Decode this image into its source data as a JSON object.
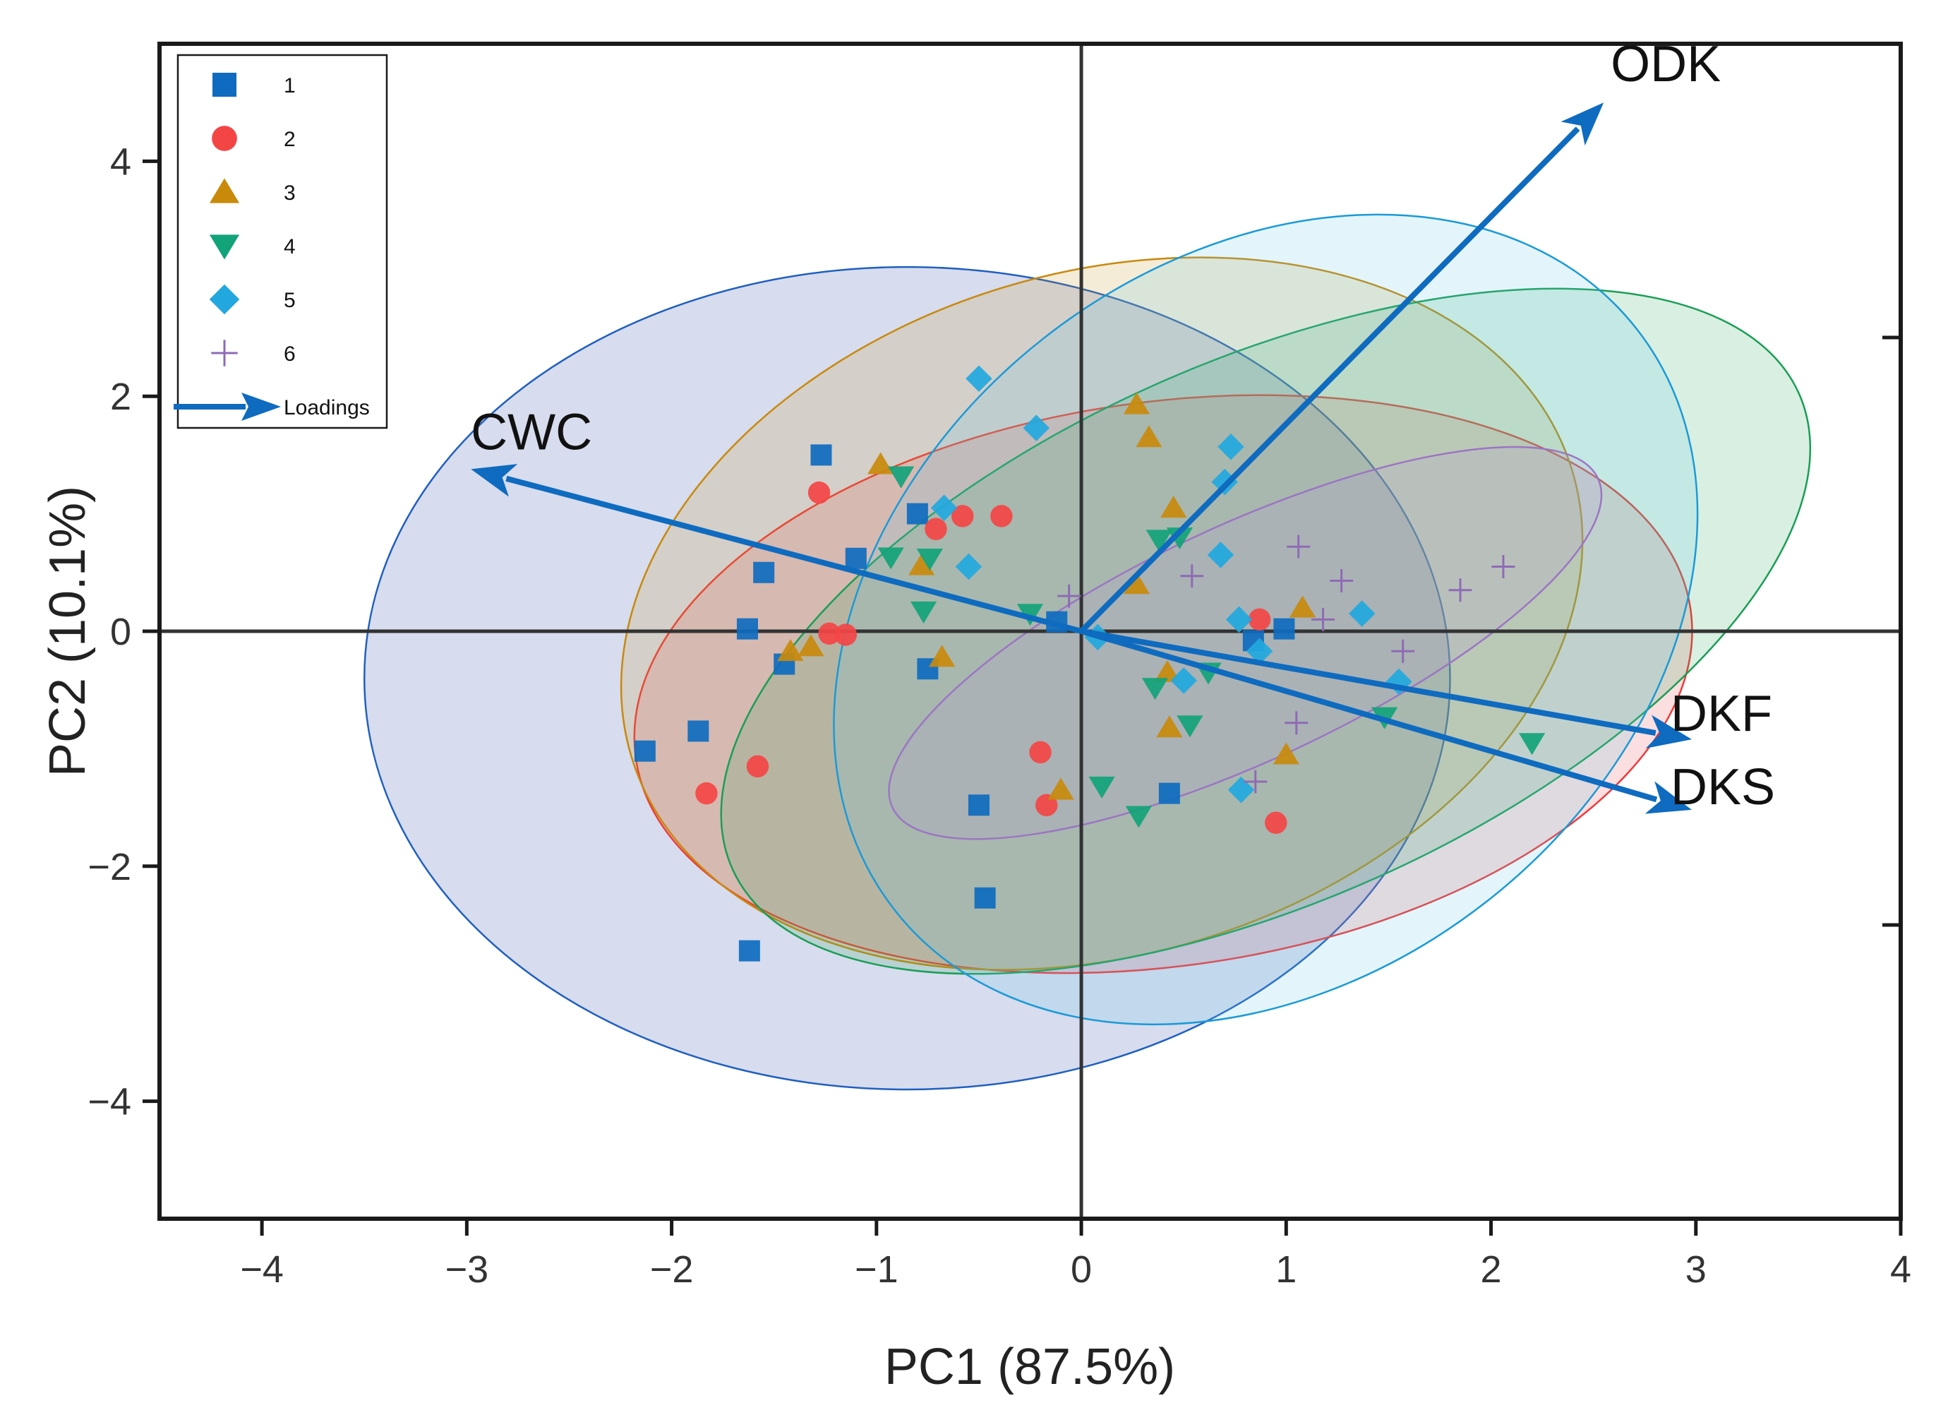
{
  "chart_data": {
    "type": "scatter",
    "subtype": "pca-biplot",
    "title": "",
    "xlabel": "PC1 (87.5%)",
    "ylabel": "PC2 (10.1%)",
    "xlim": [
      -4.5,
      4
    ],
    "ylim": [
      -5,
      5
    ],
    "xticks": [
      -4,
      -3,
      -2,
      -1,
      0,
      1,
      2,
      3,
      4
    ],
    "yticks": [
      -4,
      -2,
      0,
      2,
      4
    ],
    "xtick_labels": [
      "−4",
      "−3",
      "−2",
      "−1",
      "0",
      "1",
      "2",
      "3",
      "4"
    ],
    "ytick_labels": [
      "−4",
      "−2",
      "0",
      "2",
      "4"
    ],
    "grid": false,
    "legend_position": "top-left",
    "series": [
      {
        "name": "1",
        "marker": "square",
        "color": "#0E6BBF",
        "ellipse": {
          "cx": -0.85,
          "cy": -0.4,
          "rx": 2.65,
          "ry": 3.5,
          "angle": 0,
          "fill": "#1F3DA0",
          "stroke": "#1F5FBF"
        },
        "points": [
          [
            -1.27,
            1.5
          ],
          [
            -1.55,
            0.5
          ],
          [
            -1.63,
            0.02
          ],
          [
            -1.45,
            -0.28
          ],
          [
            -1.1,
            0.62
          ],
          [
            -0.8,
            1.0
          ],
          [
            -0.75,
            -0.32
          ],
          [
            -0.12,
            0.08
          ],
          [
            -2.13,
            -1.02
          ],
          [
            -1.87,
            -0.85
          ],
          [
            -0.5,
            -1.48
          ],
          [
            -0.47,
            -2.27
          ],
          [
            -1.62,
            -2.72
          ],
          [
            0.43,
            -1.38
          ],
          [
            0.84,
            -0.08
          ],
          [
            0.99,
            0.02
          ]
        ]
      },
      {
        "name": "2",
        "marker": "circle",
        "color": "#F44545",
        "ellipse": {
          "cx": 0.4,
          "cy": -0.45,
          "rx": 2.6,
          "ry": 2.4,
          "angle": -8,
          "fill": "#E8464B",
          "stroke": "#EE3A3A"
        },
        "points": [
          [
            -1.28,
            1.18
          ],
          [
            -0.71,
            0.87
          ],
          [
            -0.58,
            0.98
          ],
          [
            -0.39,
            0.98
          ],
          [
            -1.23,
            -0.02
          ],
          [
            -1.15,
            -0.03
          ],
          [
            -1.58,
            -1.15
          ],
          [
            -1.83,
            -1.38
          ],
          [
            -0.2,
            -1.03
          ],
          [
            -0.17,
            -1.48
          ],
          [
            0.87,
            0.1
          ],
          [
            0.95,
            -1.63
          ]
        ]
      },
      {
        "name": "3",
        "marker": "triangle-up",
        "color": "#C98A0C",
        "ellipse": {
          "cx": 0.1,
          "cy": 0.15,
          "rx": 2.4,
          "ry": 2.9,
          "angle": -17,
          "fill": "#C99520",
          "stroke": "#C8890C"
        },
        "points": [
          [
            -0.98,
            1.42
          ],
          [
            -0.78,
            0.56
          ],
          [
            -1.32,
            -0.13
          ],
          [
            -1.42,
            -0.17
          ],
          [
            -0.68,
            -0.22
          ],
          [
            0.27,
            1.93
          ],
          [
            0.33,
            1.65
          ],
          [
            0.45,
            1.05
          ],
          [
            0.27,
            0.4
          ],
          [
            0.42,
            -0.35
          ],
          [
            0.43,
            -0.82
          ],
          [
            1.08,
            0.2
          ],
          [
            1.0,
            -1.05
          ],
          [
            -0.1,
            -1.35
          ]
        ]
      },
      {
        "name": "4",
        "marker": "triangle-down",
        "color": "#12A37A",
        "ellipse": {
          "cx": 0.9,
          "cy": 0.0,
          "rx": 2.85,
          "ry": 2.3,
          "angle": -24,
          "fill": "#2EA55E",
          "stroke": "#1A9E55"
        },
        "points": [
          [
            -0.88,
            1.32
          ],
          [
            -0.93,
            0.63
          ],
          [
            -0.74,
            0.62
          ],
          [
            -0.77,
            0.17
          ],
          [
            -0.25,
            0.15
          ],
          [
            0.38,
            0.78
          ],
          [
            0.48,
            0.8
          ],
          [
            0.36,
            -0.48
          ],
          [
            0.53,
            -0.8
          ],
          [
            0.62,
            -0.35
          ],
          [
            0.1,
            -1.32
          ],
          [
            0.28,
            -1.57
          ],
          [
            1.48,
            -0.73
          ],
          [
            2.2,
            -0.95
          ]
        ]
      },
      {
        "name": "5",
        "marker": "diamond",
        "color": "#22A8DE",
        "ellipse": {
          "cx": 0.9,
          "cy": 0.1,
          "rx": 2.3,
          "ry": 3.05,
          "angle": -38,
          "fill": "#63C6EA",
          "stroke": "#1B9AD6"
        },
        "points": [
          [
            -0.5,
            2.15
          ],
          [
            -0.22,
            1.73
          ],
          [
            -0.67,
            1.05
          ],
          [
            -0.55,
            0.55
          ],
          [
            0.73,
            1.57
          ],
          [
            0.7,
            1.27
          ],
          [
            0.68,
            0.65
          ],
          [
            0.77,
            0.1
          ],
          [
            1.37,
            0.15
          ],
          [
            0.5,
            -0.42
          ],
          [
            0.87,
            -0.17
          ],
          [
            1.55,
            -0.43
          ],
          [
            0.78,
            -1.35
          ],
          [
            0.08,
            -0.05
          ]
        ]
      },
      {
        "name": "6",
        "marker": "plus",
        "color": "#8E6BB5",
        "ellipse": {
          "cx": 0.8,
          "cy": -0.1,
          "rx": 1.9,
          "ry": 1.0,
          "angle": -25,
          "fill": "#B89BD8",
          "stroke": "#9B76C2"
        },
        "points": [
          [
            -0.06,
            0.3
          ],
          [
            0.54,
            0.47
          ],
          [
            1.06,
            0.72
          ],
          [
            1.27,
            0.43
          ],
          [
            1.85,
            0.35
          ],
          [
            2.06,
            0.55
          ],
          [
            1.57,
            -0.17
          ],
          [
            1.05,
            -0.78
          ],
          [
            0.85,
            -1.28
          ],
          [
            1.18,
            0.1
          ]
        ]
      }
    ],
    "loadings": {
      "name": "Loadings",
      "color": "#0E6BBF",
      "vectors": [
        {
          "label": "ODK",
          "x": 2.55,
          "y": 4.5
        },
        {
          "label": "CWC",
          "x": -2.98,
          "y": 1.38
        },
        {
          "label": "DKF",
          "x": 2.98,
          "y": -0.92
        },
        {
          "label": "DKS",
          "x": 2.98,
          "y": -1.52
        }
      ]
    }
  }
}
